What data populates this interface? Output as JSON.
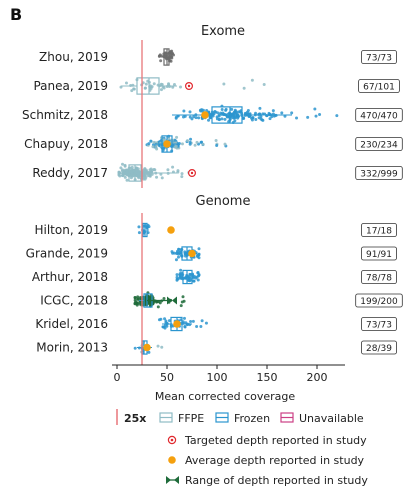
{
  "panel_label": "B",
  "colors": {
    "ffpe": "#8fbcc5",
    "frozen": "#2b95cf",
    "unavailable": "#cc3f85",
    "ref_line": "#e8767a",
    "targeted": "#e0282e",
    "average": "#f5a00e",
    "range": "#1f6b3a",
    "dots_gray": "#6b6b6b",
    "icgc_dots": "#1f6b3a"
  },
  "chart_data": [
    {
      "type": "box-swarm",
      "title": "Exome",
      "xlabel": "Mean corrected coverage",
      "xlim": [
        0,
        225
      ],
      "xticks": [
        0,
        50,
        100,
        150,
        200
      ],
      "reference_line": 25,
      "studies": [
        {
          "name": "Zhou, 2019",
          "count": "73/73",
          "tissue": "Unavailable",
          "box": [
            44,
            47,
            50,
            52,
            56
          ],
          "dots_color": "gray",
          "range": [
            40,
            68
          ]
        },
        {
          "name": "Panea, 2019",
          "count": "67/101",
          "tissue": "FFPE",
          "box": [
            4,
            20,
            32,
            42,
            60
          ],
          "dots_color": "ffpe",
          "range": [
            4,
            150
          ],
          "targeted": 72
        },
        {
          "name": "Schmitz, 2018",
          "count": "470/470",
          "tissue": "Frozen",
          "box": [
            55,
            95,
            113,
            125,
            175
          ],
          "dots_color": "frozen",
          "range": [
            55,
            225
          ],
          "average": 88
        },
        {
          "name": "Chapuy, 2018",
          "count": "230/234",
          "tissue": "Frozen+FFPE",
          "box": [
            38,
            45,
            50,
            55,
            62
          ],
          "dots_color": "mixed",
          "range": [
            30,
            110
          ],
          "average": 50
        },
        {
          "name": "Reddy, 2017",
          "count": "332/999",
          "tissue": "FFPE",
          "box": [
            2,
            12,
            18,
            24,
            60
          ],
          "dots_color": "ffpe",
          "range": [
            2,
            75
          ],
          "targeted": 75
        }
      ]
    },
    {
      "type": "box-swarm",
      "title": "Genome",
      "xlabel": "Mean corrected coverage",
      "xlim": [
        0,
        225
      ],
      "xticks": [
        0,
        50,
        100,
        150,
        200
      ],
      "reference_line": 25,
      "studies": [
        {
          "name": "Hilton, 2019",
          "count": "17/18",
          "tissue": "Frozen",
          "box": [
            24,
            26,
            28,
            30,
            32
          ],
          "dots_color": "frozen",
          "range": [
            18,
            32
          ],
          "average": 54
        },
        {
          "name": "Grande, 2019",
          "count": "91/91",
          "tissue": "Frozen",
          "box": [
            60,
            65,
            70,
            75,
            80
          ],
          "dots_color": "frozen",
          "range": [
            55,
            82
          ],
          "average": 75
        },
        {
          "name": "Arthur, 2018",
          "count": "78/78",
          "tissue": "Frozen",
          "box": [
            62,
            66,
            70,
            75,
            80
          ],
          "dots_color": "frozen",
          "range": [
            60,
            82
          ]
        },
        {
          "name": "ICGC, 2018",
          "count": "199/200",
          "tissue": "Frozen",
          "box": [
            22,
            27,
            30,
            35,
            45
          ],
          "dots_color": "icgc",
          "range": [
            18,
            72
          ],
          "range_reported": [
            30,
            55
          ]
        },
        {
          "name": "Kridel, 2016",
          "count": "73/73",
          "tissue": "Frozen",
          "box": [
            45,
            54,
            60,
            65,
            75
          ],
          "dots_color": "frozen",
          "range": [
            35,
            95
          ],
          "average": 60
        },
        {
          "name": "Morin, 2013",
          "count": "28/39",
          "tissue": "FFPE+Frozen",
          "box": [
            20,
            25,
            27,
            30,
            35
          ],
          "dots_color": "mixed",
          "range": [
            8,
            50
          ],
          "average": 30
        }
      ]
    }
  ],
  "legend": {
    "ref_label": "25x",
    "ffpe": "FFPE",
    "frozen": "Frozen",
    "unavailable": "Unavailable",
    "targeted": "Targeted depth reported in study",
    "average": "Average depth reported in study",
    "range": "Range of depth reported in study"
  }
}
